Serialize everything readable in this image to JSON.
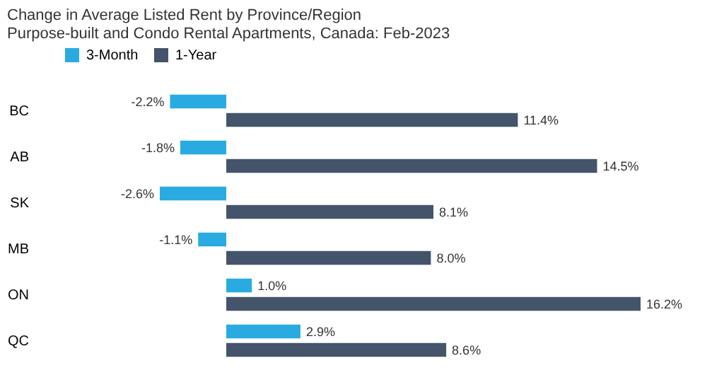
{
  "chart_data": {
    "type": "bar",
    "orientation": "horizontal",
    "title": [
      "Change in Average Listed Rent by Province/Region",
      "Purpose-built and Condo Rental Apartments, Canada: Feb-2023"
    ],
    "categories": [
      "BC",
      "AB",
      "SK",
      "MB",
      "ON",
      "QC"
    ],
    "series": [
      {
        "name": "3-Month",
        "color": "#29abe2",
        "values": [
          -2.2,
          -1.8,
          -2.6,
          -1.1,
          1.0,
          2.9
        ],
        "value_labels": [
          "-2.2%",
          "-1.8%",
          "-2.6%",
          "-1.1%",
          "1.0%",
          "2.9%"
        ]
      },
      {
        "name": "1-Year",
        "color": "#44546a",
        "values": [
          11.4,
          14.5,
          8.1,
          8.0,
          16.2,
          8.6
        ],
        "value_labels": [
          "11.4%",
          "14.5%",
          "8.1%",
          "8.0%",
          "16.2%",
          "8.6%"
        ]
      }
    ],
    "legend": "top",
    "tick_labels": "y",
    "grid": false
  }
}
